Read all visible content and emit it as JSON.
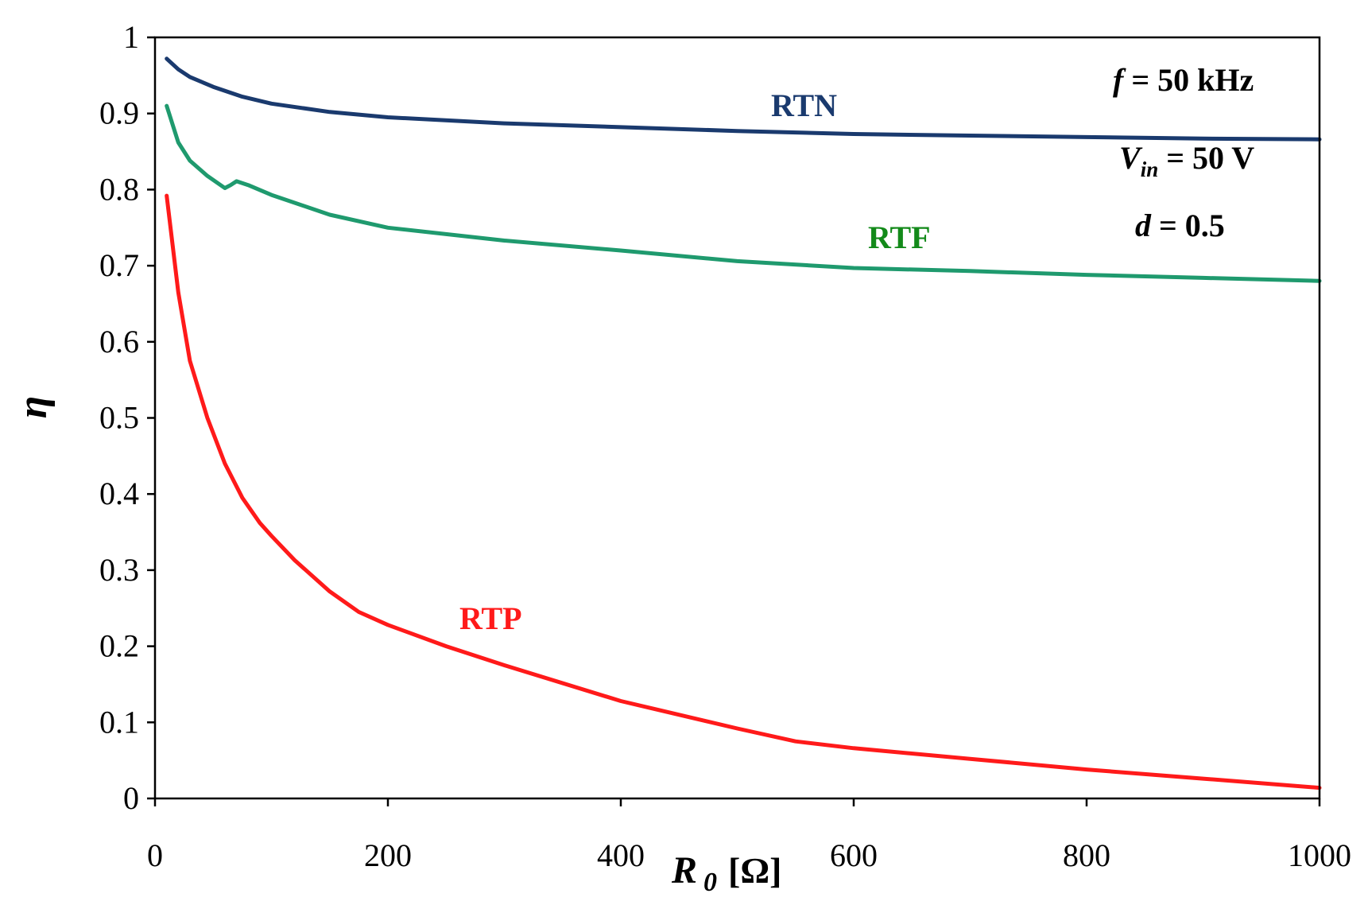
{
  "chart_data": {
    "type": "line",
    "xlabel": "R",
    "xlabel_sub": "0",
    "xlabel_unit": "[Ω]",
    "ylabel": "η",
    "xlim": [
      0,
      1000
    ],
    "ylim": [
      0,
      1
    ],
    "x_ticks": [
      0,
      200,
      400,
      600,
      800,
      1000
    ],
    "y_ticks": [
      0,
      0.1,
      0.2,
      0.3,
      0.4,
      0.5,
      0.6,
      0.7,
      0.8,
      0.9,
      1
    ],
    "x_tick_labels": [
      "0",
      "200",
      "400",
      "600",
      "800",
      "1000"
    ],
    "y_tick_labels": [
      "0",
      "0.1",
      "0.2",
      "0.3",
      "0.4",
      "0.5",
      "0.6",
      "0.7",
      "0.8",
      "0.9",
      "1"
    ],
    "grid": false,
    "series": [
      {
        "name": "RTN",
        "color": "#1a3a6e",
        "x": [
          10,
          20,
          30,
          50,
          75,
          100,
          150,
          200,
          300,
          400,
          500,
          600,
          700,
          800,
          900,
          1000
        ],
        "y": [
          0.972,
          0.958,
          0.948,
          0.935,
          0.922,
          0.913,
          0.902,
          0.895,
          0.887,
          0.882,
          0.877,
          0.873,
          0.871,
          0.869,
          0.867,
          0.866
        ]
      },
      {
        "name": "RTF",
        "color": "#1f9a6e",
        "label_color": "#138a1a",
        "x": [
          10,
          20,
          30,
          45,
          60,
          65,
          70,
          80,
          100,
          150,
          200,
          300,
          400,
          500,
          600,
          700,
          800,
          900,
          1000
        ],
        "y": [
          0.91,
          0.862,
          0.838,
          0.818,
          0.802,
          0.806,
          0.811,
          0.806,
          0.793,
          0.767,
          0.75,
          0.733,
          0.72,
          0.706,
          0.697,
          0.693,
          0.688,
          0.684,
          0.68
        ]
      },
      {
        "name": "RTP",
        "color": "#ff1a1a",
        "x": [
          10,
          20,
          30,
          45,
          60,
          75,
          90,
          100,
          120,
          150,
          175,
          200,
          250,
          300,
          400,
          500,
          550,
          600,
          700,
          800,
          900,
          1000
        ],
        "y": [
          0.792,
          0.665,
          0.575,
          0.5,
          0.44,
          0.395,
          0.362,
          0.345,
          0.313,
          0.272,
          0.245,
          0.228,
          0.2,
          0.175,
          0.128,
          0.092,
          0.075,
          0.066,
          0.052,
          0.038,
          0.026,
          0.014
        ]
      }
    ],
    "annotations": [
      {
        "var": "f",
        "text": " = 50 kHz"
      },
      {
        "var": "V",
        "sub": "in",
        "text": " = 50 V"
      },
      {
        "var": "d",
        "text": " = 0.5"
      }
    ]
  }
}
